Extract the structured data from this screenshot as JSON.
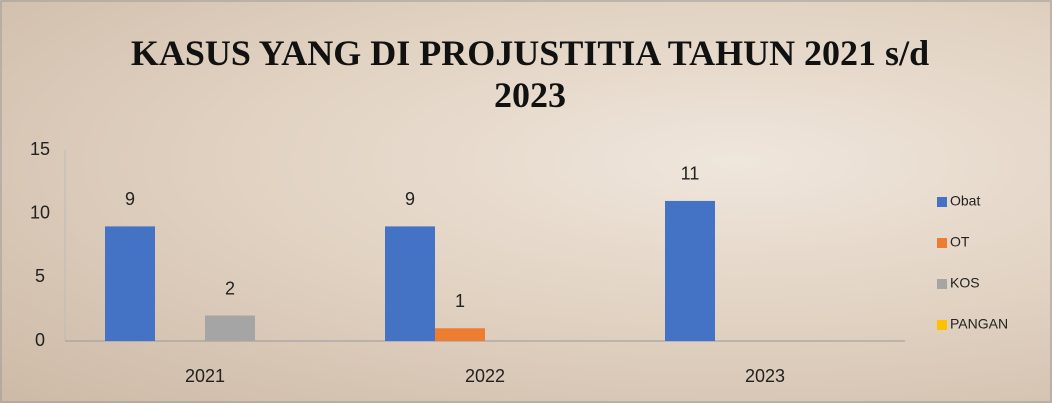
{
  "chart_data": {
    "type": "bar",
    "title": "KASUS YANG DI PROJUSTITIA TAHUN 2021 s/d 2023",
    "categories": [
      "2021",
      "2022",
      "2023"
    ],
    "series": [
      {
        "name": "Obat",
        "color": "#4472c4",
        "values": [
          9,
          9,
          11
        ]
      },
      {
        "name": "OT",
        "color": "#ed7d31",
        "values": [
          null,
          1,
          null
        ]
      },
      {
        "name": "KOS",
        "color": "#a5a5a5",
        "values": [
          2,
          null,
          null
        ]
      },
      {
        "name": "PANGAN",
        "color": "#ffc000",
        "values": [
          null,
          null,
          null
        ]
      }
    ],
    "ylim": [
      0,
      15
    ],
    "yticks": [
      0,
      5,
      10,
      15
    ],
    "grid": false,
    "legend": "right"
  }
}
